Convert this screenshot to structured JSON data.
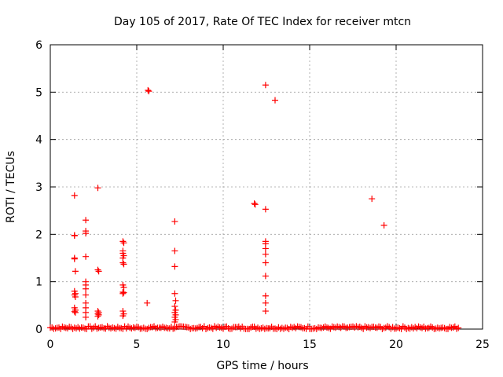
{
  "chart_data": {
    "type": "scatter",
    "title": "Day 105 of 2017, Rate Of TEC Index for receiver mtcn",
    "xlabel": "GPS time / hours",
    "ylabel": "ROTI / TECUs",
    "xlim": [
      0,
      25
    ],
    "ylim": [
      0,
      6
    ],
    "xticks": [
      0,
      5,
      10,
      15,
      20,
      25
    ],
    "yticks": [
      0,
      1,
      2,
      3,
      4,
      5,
      6
    ],
    "grid": true,
    "marker": "+",
    "color": "#ff0000",
    "series": [
      {
        "name": "ROTI",
        "points": [
          [
            1.4,
            2.82
          ],
          [
            1.4,
            1.98
          ],
          [
            1.4,
            1.97
          ],
          [
            1.4,
            1.5
          ],
          [
            1.4,
            1.48
          ],
          [
            1.45,
            1.22
          ],
          [
            1.4,
            0.8
          ],
          [
            1.45,
            0.75
          ],
          [
            1.4,
            0.72
          ],
          [
            1.45,
            0.68
          ],
          [
            1.4,
            0.45
          ],
          [
            1.45,
            0.4
          ],
          [
            1.4,
            0.37
          ],
          [
            1.45,
            0.35
          ],
          [
            2.05,
            2.3
          ],
          [
            2.05,
            2.07
          ],
          [
            2.05,
            2.02
          ],
          [
            2.05,
            1.53
          ],
          [
            2.05,
            1.0
          ],
          [
            2.05,
            0.93
          ],
          [
            2.05,
            0.85
          ],
          [
            2.05,
            0.72
          ],
          [
            2.05,
            0.55
          ],
          [
            2.05,
            0.45
          ],
          [
            2.05,
            0.35
          ],
          [
            2.05,
            0.25
          ],
          [
            2.75,
            2.98
          ],
          [
            2.75,
            1.25
          ],
          [
            2.8,
            1.22
          ],
          [
            2.75,
            0.38
          ],
          [
            2.8,
            0.35
          ],
          [
            2.75,
            0.32
          ],
          [
            2.8,
            0.3
          ],
          [
            2.75,
            0.27
          ],
          [
            4.2,
            1.85
          ],
          [
            4.25,
            1.82
          ],
          [
            4.2,
            1.65
          ],
          [
            4.2,
            1.6
          ],
          [
            4.25,
            1.55
          ],
          [
            4.2,
            1.5
          ],
          [
            4.2,
            1.4
          ],
          [
            4.25,
            1.37
          ],
          [
            4.2,
            0.93
          ],
          [
            4.25,
            0.88
          ],
          [
            4.2,
            0.78
          ],
          [
            4.25,
            0.77
          ],
          [
            4.2,
            0.75
          ],
          [
            4.2,
            0.38
          ],
          [
            4.25,
            0.32
          ],
          [
            4.2,
            0.28
          ],
          [
            5.65,
            5.04
          ],
          [
            5.7,
            5.02
          ],
          [
            5.6,
            0.55
          ],
          [
            7.2,
            2.27
          ],
          [
            7.2,
            1.65
          ],
          [
            7.2,
            1.32
          ],
          [
            7.2,
            0.75
          ],
          [
            7.25,
            0.6
          ],
          [
            7.2,
            0.48
          ],
          [
            7.25,
            0.4
          ],
          [
            7.2,
            0.35
          ],
          [
            7.25,
            0.3
          ],
          [
            7.2,
            0.25
          ],
          [
            7.25,
            0.2
          ],
          [
            7.2,
            0.15
          ],
          [
            11.8,
            2.65
          ],
          [
            11.85,
            2.63
          ],
          [
            12.45,
            5.15
          ],
          [
            13.0,
            4.83
          ],
          [
            12.45,
            2.53
          ],
          [
            12.45,
            1.85
          ],
          [
            12.45,
            1.8
          ],
          [
            12.45,
            1.7
          ],
          [
            12.45,
            1.58
          ],
          [
            12.45,
            1.4
          ],
          [
            12.45,
            1.12
          ],
          [
            12.45,
            0.7
          ],
          [
            12.45,
            0.55
          ],
          [
            12.45,
            0.38
          ],
          [
            18.6,
            2.75
          ],
          [
            19.3,
            2.19
          ]
        ],
        "baseline": {
          "x_range": [
            0.0,
            23.6
          ],
          "step": 0.1,
          "y_range": [
            0.0,
            0.06
          ],
          "note": "dense band of near-zero ROTI values across the whole day"
        }
      }
    ]
  }
}
